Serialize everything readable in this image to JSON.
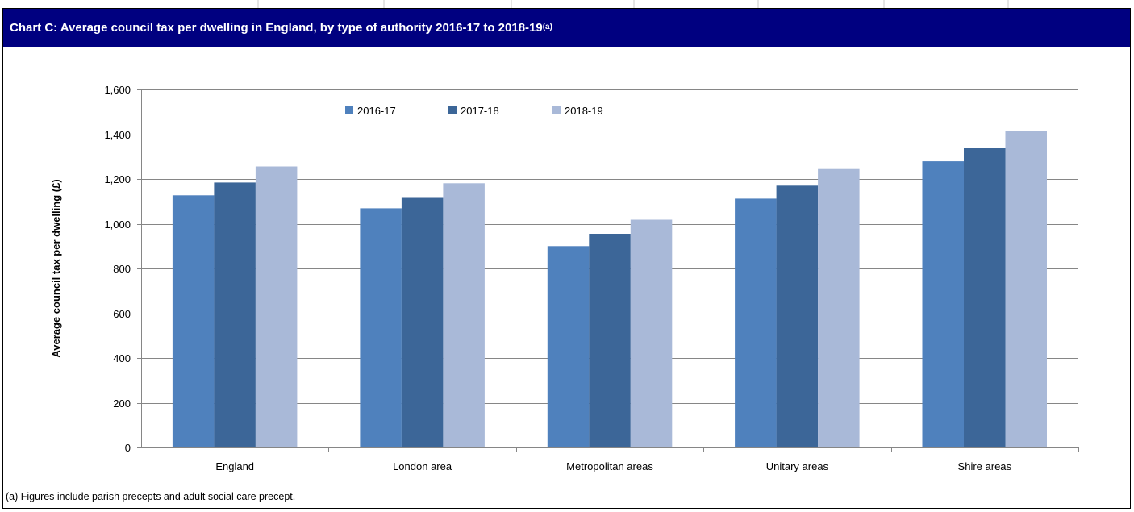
{
  "title": {
    "main": "Chart C: Average council tax per dwelling in England, by type of authority 2016-17 to 2018-19",
    "superscript": "(a)"
  },
  "footnote": "(a) Figures include parish precepts and adult social care precept.",
  "colors": {
    "title_bar": "#000080",
    "series_2016_17": "#4f81bd",
    "series_2017_18": "#3c6698",
    "series_2018_19": "#a9b9d8",
    "gridline": "#868686"
  },
  "chart_data": {
    "type": "bar",
    "ylabel": "Average council tax per dwelling (£)",
    "xlabel": "",
    "ylim": [
      0,
      1600
    ],
    "yticks": [
      0,
      200,
      400,
      600,
      800,
      1000,
      1200,
      1400,
      1600
    ],
    "ytick_labels": [
      "0",
      "200",
      "400",
      "600",
      "800",
      "1,000",
      "1,200",
      "1,400",
      "1,600"
    ],
    "grid": true,
    "legend_position": "top-center",
    "categories": [
      "England",
      "London area",
      "Metropolitan areas",
      "Unitary areas",
      "Shire areas"
    ],
    "series": [
      {
        "name": "2016-17",
        "color": "#4f81bd",
        "values": [
          1127,
          1069,
          900,
          1112,
          1279
        ]
      },
      {
        "name": "2017-18",
        "color": "#3c6698",
        "values": [
          1184,
          1119,
          955,
          1170,
          1338
        ]
      },
      {
        "name": "2018-19",
        "color": "#a9b9d8",
        "values": [
          1256,
          1181,
          1018,
          1248,
          1416
        ]
      }
    ]
  }
}
